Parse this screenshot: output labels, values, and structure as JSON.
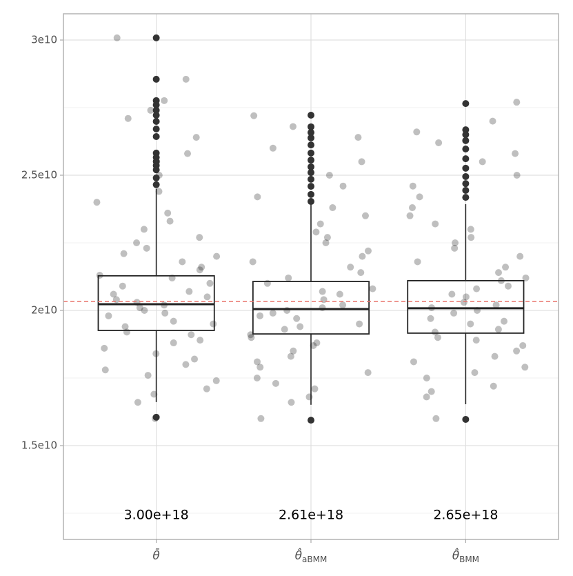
{
  "chart_data": {
    "type": "boxplot",
    "categories": [
      {
        "symbol": "θ̄",
        "subscript": ""
      },
      {
        "symbol": "θ̂",
        "subscript": "aBMM"
      },
      {
        "symbol": "θ̂",
        "subscript": "BMM"
      }
    ],
    "ylim": [
      11530000000.0,
      30970000000.0
    ],
    "yticks": [
      {
        "value": 15000000000.0,
        "label": "1.5e10"
      },
      {
        "value": 20000000000.0,
        "label": "2e10"
      },
      {
        "value": 25000000000.0,
        "label": "2.5e10"
      },
      {
        "value": 30000000000.0,
        "label": "3e10"
      }
    ],
    "minor_yticks": [
      12500000000.0,
      17500000000.0,
      22500000000.0,
      27500000000.0
    ],
    "grid": true,
    "hline": {
      "value": 20330000000.0,
      "color": "#e8736c"
    },
    "annotations": [
      "3.00e+18",
      "2.61e+18",
      "2.65e+18"
    ],
    "point_color": "#000000",
    "box_color": "#222222",
    "groups": [
      {
        "whisker_low": 16610000000.0,
        "q1": 19260000000.0,
        "median": 20230000000.0,
        "q3": 21280000000.0,
        "whisker_high": 24500000000.0,
        "outliers": [
          30080000000.0,
          28550000000.0,
          27760000000.0,
          27600000000.0,
          27400000000.0,
          27220000000.0,
          26990000000.0,
          26710000000.0,
          26430000000.0,
          25820000000.0,
          25660000000.0,
          25510000000.0,
          25360000000.0,
          25200000000.0,
          24900000000.0,
          24650000000.0,
          16050000000.0
        ],
        "points": [
          30080000000.0,
          28550000000.0,
          27760000000.0,
          27400000000.0,
          27100000000.0,
          26400000000.0,
          25800000000.0,
          25500000000.0,
          25000000000.0,
          24400000000.0,
          24000000000.0,
          23600000000.0,
          23300000000.0,
          23000000000.0,
          22700000000.0,
          22500000000.0,
          22300000000.0,
          22100000000.0,
          22000000000.0,
          21800000000.0,
          21600000000.0,
          21500000000.0,
          21300000000.0,
          21200000000.0,
          21000000000.0,
          20900000000.0,
          20700000000.0,
          20600000000.0,
          20500000000.0,
          20400000000.0,
          20300000000.0,
          20200000000.0,
          20100000000.0,
          20000000000.0,
          19900000000.0,
          19800000000.0,
          19600000000.0,
          19500000000.0,
          19400000000.0,
          19200000000.0,
          19100000000.0,
          18900000000.0,
          18800000000.0,
          18600000000.0,
          18400000000.0,
          18200000000.0,
          18000000000.0,
          17800000000.0,
          17600000000.0,
          17400000000.0,
          17100000000.0,
          16900000000.0,
          16600000000.0,
          16000000000.0
        ]
      },
      {
        "whisker_low": 16510000000.0,
        "q1": 19130000000.0,
        "median": 20050000000.0,
        "q3": 21070000000.0,
        "whisker_high": 23930000000.0,
        "outliers": [
          27220000000.0,
          26790000000.0,
          26580000000.0,
          26380000000.0,
          26120000000.0,
          25820000000.0,
          25560000000.0,
          25310000000.0,
          25100000000.0,
          24850000000.0,
          24590000000.0,
          24290000000.0,
          24030000000.0,
          15940000000.0
        ],
        "points": [
          27200000000.0,
          26800000000.0,
          26400000000.0,
          26000000000.0,
          25500000000.0,
          25000000000.0,
          24600000000.0,
          24200000000.0,
          23800000000.0,
          23500000000.0,
          23200000000.0,
          22900000000.0,
          22700000000.0,
          22500000000.0,
          22200000000.0,
          22000000000.0,
          21800000000.0,
          21600000000.0,
          21400000000.0,
          21200000000.0,
          21000000000.0,
          20800000000.0,
          20700000000.0,
          20600000000.0,
          20400000000.0,
          20200000000.0,
          20100000000.0,
          20000000000.0,
          19900000000.0,
          19800000000.0,
          19700000000.0,
          19500000000.0,
          19400000000.0,
          19300000000.0,
          19100000000.0,
          19000000000.0,
          18800000000.0,
          18700000000.0,
          18500000000.0,
          18300000000.0,
          18100000000.0,
          17900000000.0,
          17700000000.0,
          17500000000.0,
          17300000000.0,
          17100000000.0,
          16800000000.0,
          16600000000.0,
          16000000000.0
        ]
      },
      {
        "whisker_low": 16530000000.0,
        "q1": 19160000000.0,
        "median": 20080000000.0,
        "q3": 21100000000.0,
        "whisker_high": 23930000000.0,
        "outliers": [
          27650000000.0,
          26680000000.0,
          26500000000.0,
          26280000000.0,
          25970000000.0,
          25610000000.0,
          25260000000.0,
          24950000000.0,
          24690000000.0,
          24440000000.0,
          24180000000.0,
          15970000000.0
        ],
        "points": [
          27700000000.0,
          27000000000.0,
          26600000000.0,
          26200000000.0,
          25800000000.0,
          25500000000.0,
          25000000000.0,
          24600000000.0,
          24200000000.0,
          23800000000.0,
          23500000000.0,
          23200000000.0,
          23000000000.0,
          22700000000.0,
          22500000000.0,
          22300000000.0,
          22000000000.0,
          21800000000.0,
          21600000000.0,
          21400000000.0,
          21200000000.0,
          21100000000.0,
          20900000000.0,
          20800000000.0,
          20600000000.0,
          20500000000.0,
          20300000000.0,
          20200000000.0,
          20100000000.0,
          20000000000.0,
          19900000000.0,
          19700000000.0,
          19600000000.0,
          19500000000.0,
          19300000000.0,
          19200000000.0,
          19000000000.0,
          18900000000.0,
          18700000000.0,
          18500000000.0,
          18300000000.0,
          18100000000.0,
          17900000000.0,
          17700000000.0,
          17500000000.0,
          17200000000.0,
          17000000000.0,
          16800000000.0,
          16000000000.0
        ]
      }
    ]
  }
}
